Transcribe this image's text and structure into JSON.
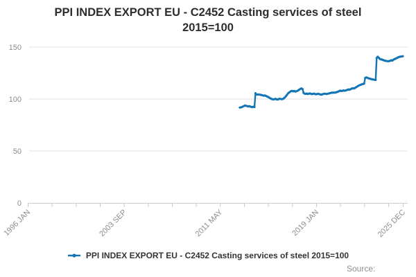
{
  "title": {
    "line1": "PPI INDEX EXPORT EU - C2452 Casting services of steel",
    "line2": "2015=100"
  },
  "legend": {
    "label": "PPI INDEX EXPORT EU - C2452 Casting services of steel 2015=100"
  },
  "source": {
    "label": "Source:"
  },
  "colors": {
    "series_line": "#1375b5",
    "gridline": "#e2e2e2",
    "axis": "#c2ccd4",
    "tick_label": "#8c8c8c",
    "title_text": "#2d2d2d",
    "legend_text": "#333333",
    "source_text": "#8e8e8e"
  },
  "chart_data": {
    "type": "line",
    "title": "PPI INDEX EXPORT EU - C2452 Casting services of steel",
    "subtitle": "2015=100",
    "grid": true,
    "legend_position": "bottom",
    "yaxis": {
      "ticks": [
        0,
        50,
        100,
        150
      ],
      "max": 150,
      "label": ""
    },
    "xaxis": {
      "origin": "1996 JAN",
      "end": "2025 DEC",
      "tick_labels": [
        "1996 JAN",
        "2003 SEP",
        "2011 MAY",
        "2019 JAN",
        "2025 DEC"
      ],
      "minor_tick_interval_months": 23
    },
    "series": [
      {
        "name": "PPI INDEX EXPORT EU - C2452 Casting services of steel 2015=100",
        "color": "#1375b5",
        "start": "2012 DEC",
        "frequency": "monthly",
        "values": [
          91.8,
          92.0,
          92.3,
          92.8,
          93.3,
          93.7,
          93.5,
          93.2,
          92.9,
          93.1,
          92.7,
          92.4,
          92.2,
          92.6,
          92.3,
          105.6,
          104.4,
          104.2,
          104.5,
          104.3,
          104.0,
          103.8,
          103.5,
          103.2,
          103.4,
          103.0,
          102.5,
          102.0,
          101.4,
          100.8,
          100.3,
          99.9,
          99.6,
          99.8,
          100.2,
          99.7,
          99.5,
          99.9,
          100.3,
          100.1,
          99.8,
          100.0,
          100.6,
          101.5,
          102.6,
          103.8,
          105.3,
          106.2,
          106.8,
          107.6,
          107.9,
          107.4,
          107.7,
          107.2,
          107.5,
          107.8,
          108.4,
          109.1,
          109.8,
          110.2,
          109.6,
          106.0,
          105.2,
          105.0,
          105.3,
          104.9,
          105.1,
          105.4,
          105.0,
          104.7,
          105.0,
          105.2,
          104.8,
          104.6,
          104.9,
          105.1,
          104.7,
          104.4,
          104.2,
          104.6,
          104.9,
          105.2,
          105.0,
          104.8,
          105.1,
          105.3,
          105.6,
          105.9,
          106.2,
          106.0,
          106.3,
          106.1,
          106.4,
          106.7,
          107.1,
          107.6,
          108.1,
          107.7,
          107.9,
          108.3,
          108.0,
          108.2,
          108.5,
          108.9,
          109.3,
          109.0,
          109.5,
          110.0,
          110.4,
          110.1,
          110.6,
          111.2,
          111.8,
          112.5,
          113.0,
          113.5,
          113.9,
          114.2,
          114.6,
          114.8,
          120.3,
          120.9,
          120.5,
          120.0,
          119.7,
          119.4,
          119.2,
          118.9,
          118.7,
          118.5,
          118.4,
          139.6,
          140.7,
          139.8,
          138.6,
          138.2,
          138.0,
          137.6,
          137.2,
          136.9,
          136.7,
          136.5,
          136.4,
          136.6,
          136.9,
          137.3,
          137.0,
          137.8,
          138.4,
          138.9,
          139.3,
          139.9,
          140.3,
          140.7,
          140.9,
          141.0,
          141.2
        ]
      }
    ]
  }
}
